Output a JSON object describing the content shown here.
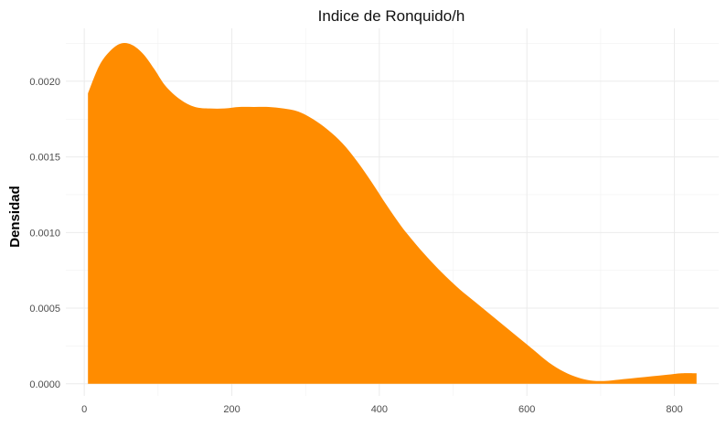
{
  "chart_data": {
    "type": "area",
    "title": "Indice de Ronquido/h",
    "xlabel": "",
    "ylabel": "Densidad",
    "xlim": [
      -25,
      860
    ],
    "ylim": [
      -8e-05,
      0.00235
    ],
    "x_ticks": [
      0,
      200,
      400,
      600,
      800
    ],
    "x_tick_labels": [
      "0",
      "200",
      "400",
      "600",
      "800"
    ],
    "y_ticks": [
      0,
      0.0005,
      0.001,
      0.0015,
      0.002
    ],
    "y_tick_labels": [
      "0.0000",
      "0.0005",
      "0.0010",
      "0.0015",
      "0.0020"
    ],
    "grid": true,
    "fill_color": "#ff8c00",
    "x": [
      5,
      20,
      35,
      50,
      65,
      80,
      95,
      110,
      130,
      150,
      170,
      190,
      210,
      230,
      250,
      270,
      290,
      310,
      330,
      350,
      370,
      390,
      410,
      430,
      450,
      470,
      490,
      510,
      530,
      550,
      570,
      590,
      610,
      630,
      650,
      670,
      690,
      710,
      730,
      750,
      770,
      790,
      810,
      830
    ],
    "y": [
      0.00192,
      0.0021,
      0.0022,
      0.00225,
      0.00224,
      0.00218,
      0.00208,
      0.00197,
      0.00188,
      0.00183,
      0.00182,
      0.00182,
      0.00183,
      0.00183,
      0.00183,
      0.00182,
      0.0018,
      0.00175,
      0.00168,
      0.00159,
      0.00147,
      0.00133,
      0.00118,
      0.00104,
      0.00092,
      0.00081,
      0.00071,
      0.00062,
      0.00054,
      0.00046,
      0.00038,
      0.0003,
      0.00022,
      0.00014,
      8e-05,
      4e-05,
      2e-05,
      2e-05,
      3e-05,
      4e-05,
      5e-05,
      6e-05,
      7e-05,
      7e-05
    ]
  }
}
